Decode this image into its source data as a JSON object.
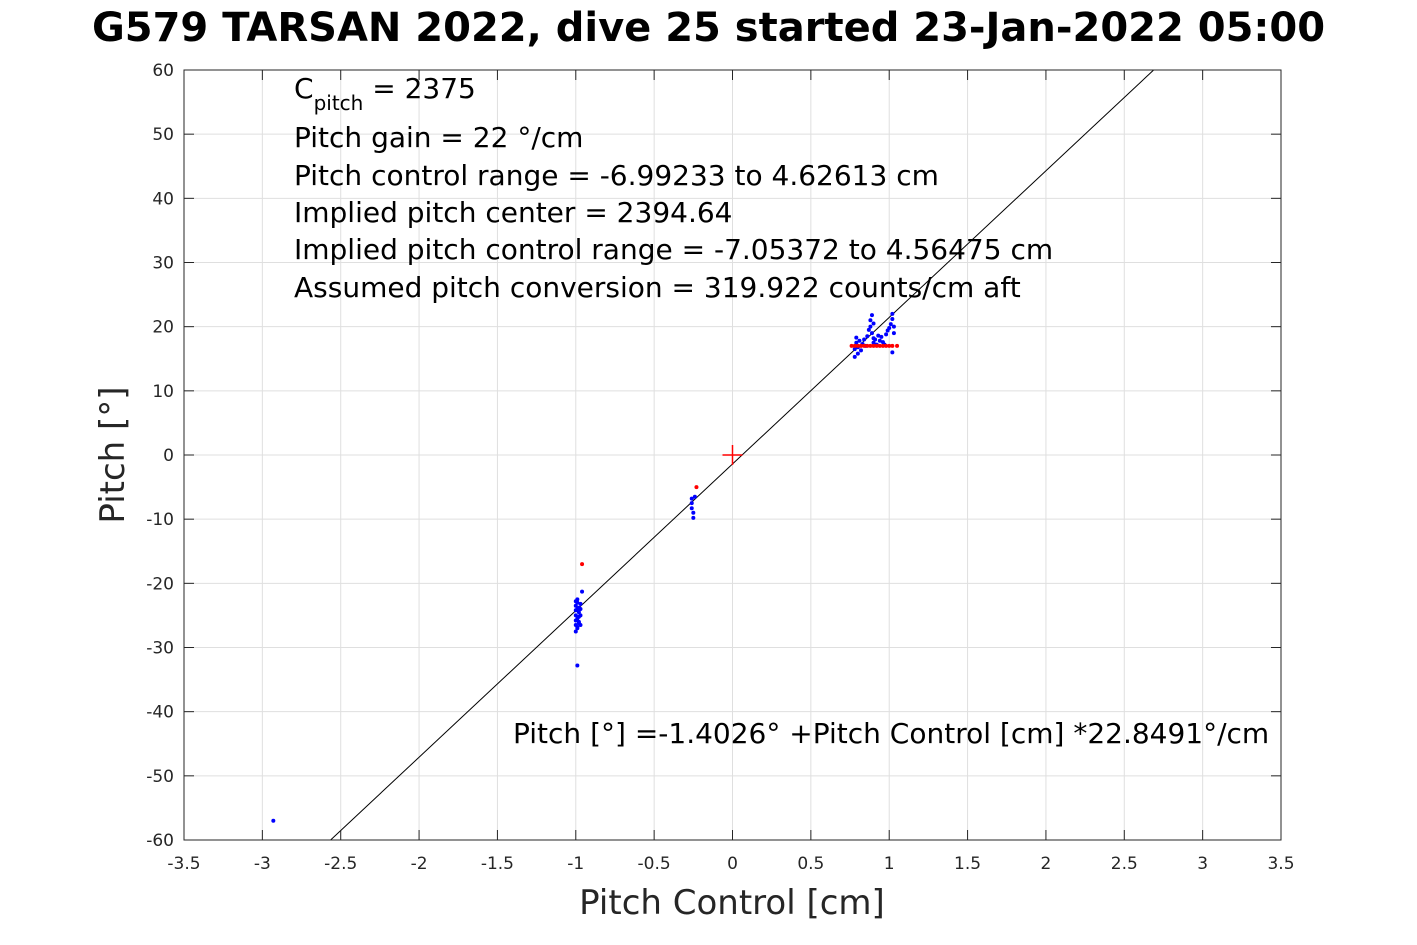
{
  "chart_data": {
    "type": "scatter",
    "title": "G579 TARSAN 2022, dive 25 started 23-Jan-2022 05:00",
    "xlabel": "Pitch Control [cm]",
    "ylabel": "Pitch [°]",
    "xlim": [
      -3.5,
      3.5
    ],
    "ylim": [
      -60,
      60
    ],
    "xticks": [
      -3.5,
      -3,
      -2.5,
      -2,
      -1.5,
      -1,
      -0.5,
      0,
      0.5,
      1,
      1.5,
      2,
      2.5,
      3,
      3.5
    ],
    "xtick_labels": [
      "-3.5",
      "-3",
      "-2.5",
      "-2",
      "-1.5",
      "-1",
      "-0.5",
      "0",
      "0.5",
      "1",
      "1.5",
      "2",
      "2.5",
      "3",
      "3.5"
    ],
    "yticks": [
      -60,
      -50,
      -40,
      -30,
      -20,
      -10,
      0,
      10,
      20,
      30,
      40,
      50,
      60
    ],
    "ytick_labels": [
      "-60",
      "-50",
      "-40",
      "-30",
      "-20",
      "-10",
      "0",
      "10",
      "20",
      "30",
      "40",
      "50",
      "60"
    ],
    "grid": true,
    "annotations": {
      "cpitch_main": "C",
      "cpitch_sub": "pitch",
      "cpitch_value": " = 2375",
      "lines": [
        "Pitch gain = 22 °/cm",
        "Pitch control range = -6.99233 to 4.62613 cm",
        "Implied pitch center = 2394.64",
        "Implied pitch control range = -7.05372 to 4.56475 cm",
        "Assumed pitch conversion = 319.922 counts/cm aft"
      ],
      "fit_equation": "Pitch [°] =-1.4026° +Pitch Control [cm] *22.8491°/cm"
    },
    "fit_line": {
      "intercept": -1.4026,
      "slope": 22.8491,
      "color": "#000000"
    },
    "center_marker": {
      "x": 0,
      "y": 0,
      "color": "#ff0000"
    },
    "series": [
      {
        "color": "#0000ff",
        "x": [
          -2.93,
          -1.0,
          -1.0,
          -1.0,
          -1.0,
          -1.0,
          -1.0,
          -1.0,
          -0.99,
          -0.99,
          -0.99,
          -0.99,
          -0.99,
          -0.99,
          -0.98,
          -0.98,
          -0.98,
          -0.98,
          -0.97,
          -0.97,
          -0.97,
          -0.96,
          -0.99,
          -0.98,
          -0.97,
          -0.26,
          -0.26,
          -0.26,
          -0.25,
          -0.25,
          -0.24,
          0.78,
          0.78,
          0.79,
          0.79,
          0.8,
          0.8,
          0.81,
          0.82,
          0.83,
          0.84,
          0.85,
          0.86,
          0.87,
          0.88,
          0.88,
          0.89,
          0.89,
          0.9,
          0.9,
          0.9,
          0.91,
          0.92,
          0.93,
          0.94,
          0.95,
          0.96,
          0.97,
          0.98,
          0.99,
          1.0,
          1.01,
          1.02,
          1.02,
          1.03,
          1.03,
          1.02
        ],
        "y": [
          -57,
          -22.8,
          -23.5,
          -24.2,
          -25.0,
          -25.8,
          -26.5,
          -27.5,
          -23.0,
          -24.0,
          -25.5,
          -26.8,
          -22.5,
          -32.8,
          -23.8,
          -24.5,
          -25.2,
          -26.0,
          -24.0,
          -25.0,
          -26.5,
          -21.3,
          -27.0,
          -26.2,
          -23.2,
          -6.8,
          -7.5,
          -8.3,
          -9.0,
          -9.8,
          -6.5,
          15.3,
          16.5,
          17.5,
          18.3,
          15.8,
          16.8,
          17.8,
          16.3,
          17.3,
          18.0,
          17.0,
          18.5,
          19.5,
          20.0,
          21.0,
          21.8,
          19.0,
          18.2,
          20.5,
          17.5,
          18.0,
          17.2,
          18.6,
          17.8,
          18.4,
          17.6,
          17.2,
          18.8,
          19.4,
          19.8,
          20.4,
          21.2,
          22.0,
          20.0,
          19.0,
          16.0
        ]
      },
      {
        "color": "#ff0000",
        "x": [
          -0.96,
          -0.23,
          0.76,
          0.78,
          0.8,
          0.82,
          0.84,
          0.86,
          0.88,
          0.9,
          0.92,
          0.94,
          0.96,
          0.98,
          1.0,
          1.02,
          1.05
        ],
        "y": [
          -17,
          -5,
          17,
          17,
          17,
          17,
          17,
          17,
          17,
          17,
          17,
          17,
          17,
          17,
          17,
          17,
          17
        ]
      }
    ]
  }
}
